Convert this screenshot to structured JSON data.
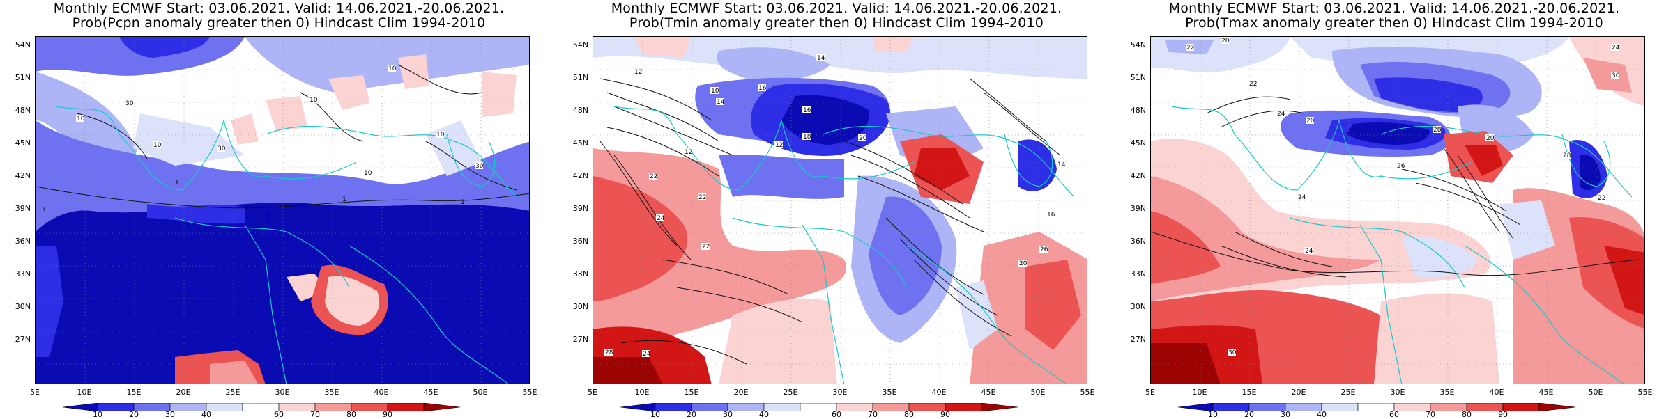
{
  "panels": [
    {
      "title_line1": "Monthly ECMWF Start: 03.06.2021. Valid: 14.06.2021.-20.06.2021.",
      "title_line2": "Prob(Pcpn anomaly greater then 0) Hindcast Clim 1994-2010",
      "contour_labels": [
        "10",
        "30",
        "10",
        "30",
        "10",
        "10",
        "10",
        "30",
        "10",
        "1",
        "1",
        "1",
        "1",
        "1"
      ]
    },
    {
      "title_line1": "Monthly ECMWF Start: 03.06.2021. Valid: 14.06.2021.-20.06.2021.",
      "title_line2": "Prob(Tmin anomaly greater then 0) Hindcast Clim 1994-2010",
      "contour_labels": [
        "12",
        "10",
        "14",
        "16",
        "14",
        "12",
        "16",
        "18",
        "12",
        "20",
        "22",
        "22",
        "24",
        "22",
        "28",
        "24",
        "26",
        "20",
        "16",
        "14"
      ]
    },
    {
      "title_line1": "Monthly ECMWF Start: 03.06.2021. Valid: 14.06.2021.-20.06.2021.",
      "title_line2": "Prob(Tmax anomaly greater then 0) Hindcast Clim 1994-2010",
      "contour_labels": [
        "20",
        "22",
        "24",
        "30",
        "22",
        "24",
        "20",
        "28",
        "26",
        "24",
        "30",
        "24",
        "22",
        "20",
        "28"
      ]
    }
  ],
  "lat_labels": [
    "54N",
    "51N",
    "48N",
    "45N",
    "42N",
    "39N",
    "36N",
    "33N",
    "30N",
    "27N"
  ],
  "lon_labels": [
    "5E",
    "10E",
    "15E",
    "20E",
    "25E",
    "30E",
    "35E",
    "40E",
    "45E",
    "50E",
    "55E"
  ],
  "colorbar": {
    "labels": [
      "10",
      "20",
      "30",
      "40",
      "60",
      "70",
      "80",
      "90"
    ],
    "colors": [
      "#0b0bb4",
      "#2e2ee6",
      "#6f72f0",
      "#aeb5f6",
      "#dde2fb",
      "#ffffff",
      "#fbd3d3",
      "#f59a9a",
      "#ec5454",
      "#d21616",
      "#9c0404"
    ]
  }
}
